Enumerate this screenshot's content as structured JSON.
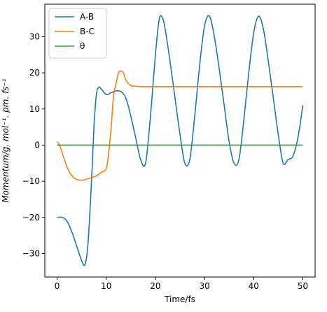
{
  "chart_data": {
    "type": "line",
    "xlabel": "Time/fs",
    "ylabel": "Momentum/g. mol⁻¹. pm. fs⁻¹",
    "xlim": [
      -2.5,
      52.5
    ],
    "ylim": [
      -36.5,
      39
    ],
    "xticks": [
      0,
      10,
      20,
      30,
      40,
      50
    ],
    "yticks": [
      -30,
      -20,
      -10,
      0,
      10,
      20,
      30
    ],
    "grid": false,
    "legend_position": "top-left",
    "series": [
      {
        "name": "A-B",
        "color": "#1f77b4",
        "x": [
          0,
          1,
          2,
          3,
          4,
          5,
          5.7,
          6.3,
          7,
          7.5,
          8,
          8.5,
          9,
          10,
          11,
          12,
          13,
          14,
          15,
          16,
          17,
          18,
          19,
          20,
          20.8,
          21.5,
          22,
          23,
          24,
          25,
          26,
          27,
          28,
          29,
          30,
          31,
          32,
          33,
          34,
          35,
          36,
          37,
          38,
          39,
          40,
          41,
          42,
          43,
          44,
          45,
          46,
          47,
          48,
          49,
          50
        ],
        "y": [
          -20,
          -20,
          -21,
          -24,
          -28,
          -32,
          -33,
          -27,
          -10,
          5,
          14,
          16,
          15.5,
          14,
          14.5,
          15,
          14.8,
          13,
          8,
          2,
          -4,
          -5,
          8,
          25,
          35,
          35,
          32,
          23,
          13,
          3,
          -5,
          -4,
          8,
          22,
          33,
          35.7,
          30,
          21,
          11,
          1,
          -5,
          -4,
          7,
          20,
          31,
          35.7,
          32,
          23,
          13,
          3,
          -5,
          -4,
          -3,
          2,
          11
        ]
      },
      {
        "name": "B-C",
        "color": "#ff7f0e",
        "x": [
          0,
          0.5,
          1,
          2,
          3,
          4,
          5,
          6,
          7,
          8,
          9,
          10,
          10.5,
          11,
          11.5,
          12,
          12.5,
          13,
          13.5,
          14,
          15,
          16,
          17,
          18,
          20,
          30,
          40,
          50
        ],
        "y": [
          1,
          0,
          -2,
          -6,
          -8.5,
          -9.5,
          -9.7,
          -9.4,
          -9,
          -8.5,
          -7.5,
          -6.5,
          -2,
          5,
          14,
          17,
          20,
          20.5,
          20,
          18,
          16.5,
          16.3,
          16.2,
          16.2,
          16.2,
          16.2,
          16.2,
          16.2
        ]
      },
      {
        "name": "θ",
        "color": "#2ca02c",
        "x": [
          0,
          50
        ],
        "y": [
          0,
          0
        ]
      }
    ]
  }
}
